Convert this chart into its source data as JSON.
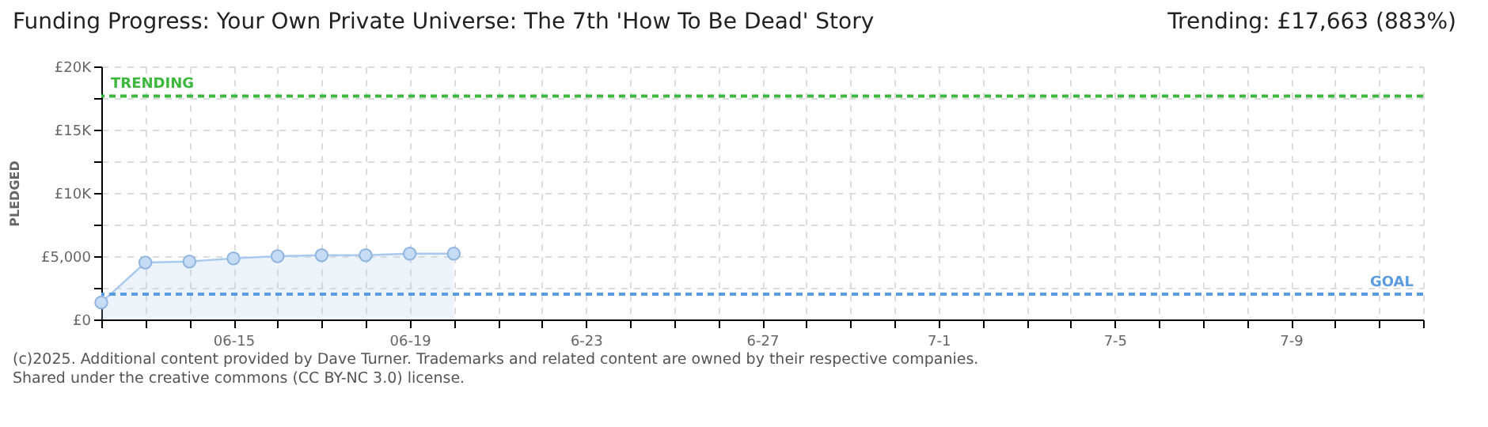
{
  "chart_data": {
    "type": "area",
    "title": "Funding Progress: Your Own Private Universe: The 7th 'How To Be Dead' Story",
    "subtitle": "Trending:  £17,663 (883%)",
    "ylabel": "PLEDGED",
    "x": [
      "--06-12",
      "--06-13",
      "--06-14",
      "--06-15",
      "--06-16",
      "--06-17",
      "--06-18",
      "--06-19",
      "--06-20"
    ],
    "series": [
      {
        "color": "#a9c9ee",
        "values": [
          1340,
          4500,
          4580,
          4830,
          5000,
          5080,
          5080,
          5200,
          5200
        ]
      }
    ],
    "xlim": [
      "--06-12",
      "--07-12"
    ],
    "xticks": [
      {
        "value": "--06-12",
        "label": null
      },
      {
        "value": "--06-13",
        "label": null
      },
      {
        "value": "--06-14",
        "label": null
      },
      {
        "value": "--06-15",
        "label": "06-15"
      },
      {
        "value": "--06-16",
        "label": null
      },
      {
        "value": "--06-17",
        "label": null
      },
      {
        "value": "--06-18",
        "label": null
      },
      {
        "value": "--06-19",
        "label": "06-19"
      },
      {
        "value": "--06-20",
        "label": null
      },
      {
        "value": "--06-21",
        "label": null
      },
      {
        "value": "--06-22",
        "label": null
      },
      {
        "value": "--06-23",
        "label": "6-23"
      },
      {
        "value": "--06-24",
        "label": null
      },
      {
        "value": "--06-25",
        "label": null
      },
      {
        "value": "--06-26",
        "label": null
      },
      {
        "value": "--06-27",
        "label": "6-27"
      },
      {
        "value": "--06-28",
        "label": null
      },
      {
        "value": "--06-29",
        "label": null
      },
      {
        "value": "--06-30",
        "label": null
      },
      {
        "value": "--07-01",
        "label": "7-1"
      },
      {
        "value": "--07-02",
        "label": null
      },
      {
        "value": "--07-03",
        "label": null
      },
      {
        "value": "--07-04",
        "label": null
      },
      {
        "value": "--07-05",
        "label": "7-5"
      },
      {
        "value": "--07-06",
        "label": null
      },
      {
        "value": "--07-07",
        "label": null
      },
      {
        "value": "--07-08",
        "label": null
      },
      {
        "value": "--07-09",
        "label": "7-9"
      },
      {
        "value": "--07-10",
        "label": null
      },
      {
        "value": "--07-11",
        "label": null
      },
      {
        "value": "--07-12",
        "label": null
      }
    ],
    "ylim": [
      0,
      20000
    ],
    "yticks": [
      {
        "value": 0,
        "label": "£0"
      },
      {
        "value": 2500,
        "label": null
      },
      {
        "value": 5000,
        "label": "£5,000"
      },
      {
        "value": 7500,
        "label": null
      },
      {
        "value": 10000,
        "label": "£10K"
      },
      {
        "value": 12500,
        "label": null
      },
      {
        "value": 15000,
        "label": "£15K"
      },
      {
        "value": 17500,
        "label": null
      },
      {
        "value": 20000,
        "label": "£20K"
      }
    ],
    "ref_lines": [
      {
        "axis": "y",
        "value": 17663,
        "label": "TRENDING",
        "color": "#3cb83c",
        "line_style": "dashed"
      },
      {
        "axis": "y",
        "value": 2000,
        "label": "GOAL",
        "color": "#5b9be0",
        "line_style": "dashed"
      }
    ],
    "grid": true,
    "marker": "circle",
    "line_style": "solid",
    "annotations": [
      "(c)2025. Additional content provided by Dave Turner. Trademarks and related content are owned by their respective companies.",
      "Shared under the creative commons (CC BY-NC 3.0) license."
    ]
  }
}
